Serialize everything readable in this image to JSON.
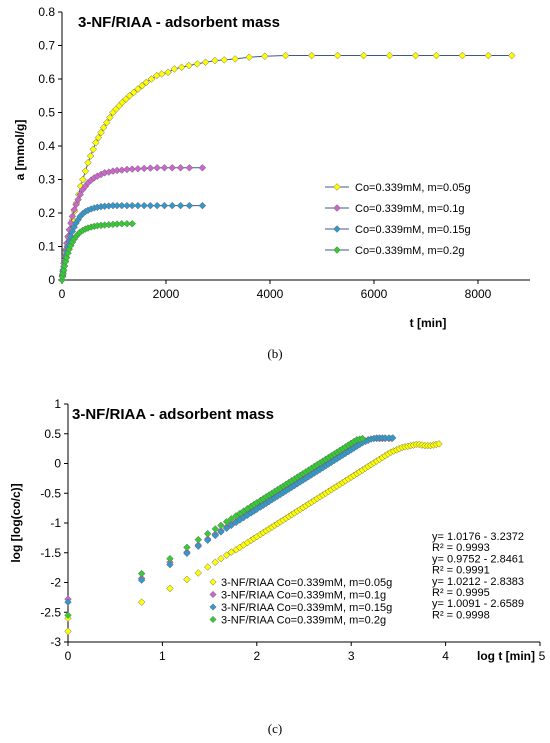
{
  "captions": {
    "b": "(b)",
    "c": "(c)"
  },
  "chart_data": [
    {
      "type": "line",
      "title": "3-NF/RIAA - adsorbent mass",
      "xlabel": "t [min]",
      "ylabel": "a [mmol/g]",
      "xlim": [
        0,
        9000
      ],
      "ylim": [
        0,
        0.8
      ],
      "xticks": [
        "0",
        "2000",
        "4000",
        "6000",
        "8000"
      ],
      "yticks": [
        "0",
        "0.1",
        "0.2",
        "0.3",
        "0.4",
        "0.5",
        "0.6",
        "0.7",
        "0.8"
      ],
      "legend_position": "right",
      "series": [
        {
          "name": "Co=0.339mM, m=0.05g",
          "color": "#ffff00",
          "x": [
            0,
            10,
            20,
            40,
            60,
            80,
            100,
            130,
            160,
            200,
            240,
            280,
            320,
            360,
            400,
            450,
            500,
            550,
            600,
            650,
            700,
            750,
            800,
            860,
            920,
            980,
            1040,
            1100,
            1160,
            1230,
            1300,
            1380,
            1460,
            1540,
            1620,
            1720,
            1820,
            1920,
            2040,
            2160,
            2300,
            2440,
            2600,
            2760,
            2940,
            3120,
            3330,
            3600,
            3900,
            4300,
            4800,
            5300,
            5800,
            6300,
            6800,
            7200,
            7700,
            8200,
            8650
          ],
          "y": [
            0.0,
            0.01,
            0.02,
            0.04,
            0.06,
            0.08,
            0.1,
            0.125,
            0.15,
            0.18,
            0.205,
            0.23,
            0.255,
            0.28,
            0.3,
            0.325,
            0.35,
            0.37,
            0.39,
            0.41,
            0.425,
            0.44,
            0.455,
            0.47,
            0.485,
            0.5,
            0.51,
            0.52,
            0.53,
            0.54,
            0.55,
            0.56,
            0.57,
            0.58,
            0.59,
            0.6,
            0.61,
            0.615,
            0.62,
            0.63,
            0.635,
            0.64,
            0.645,
            0.65,
            0.655,
            0.657,
            0.66,
            0.665,
            0.668,
            0.67,
            0.67,
            0.67,
            0.67,
            0.67,
            0.67,
            0.67,
            0.67,
            0.67,
            0.67
          ]
        },
        {
          "name": "Co=0.339mM, m=0.1g",
          "color": "#cc66cc",
          "x": [
            0,
            10,
            20,
            35,
            50,
            70,
            90,
            115,
            140,
            170,
            200,
            235,
            270,
            310,
            350,
            400,
            450,
            500,
            560,
            620,
            680,
            750,
            820,
            900,
            980,
            1060,
            1150,
            1250,
            1350,
            1460,
            1580,
            1700,
            1830,
            1970,
            2120,
            2280,
            2450,
            2700
          ],
          "y": [
            0.0,
            0.015,
            0.03,
            0.05,
            0.07,
            0.09,
            0.11,
            0.13,
            0.15,
            0.17,
            0.19,
            0.21,
            0.225,
            0.24,
            0.255,
            0.27,
            0.28,
            0.29,
            0.298,
            0.305,
            0.31,
            0.315,
            0.32,
            0.322,
            0.325,
            0.327,
            0.328,
            0.33,
            0.331,
            0.332,
            0.333,
            0.334,
            0.335,
            0.335,
            0.335,
            0.335,
            0.335,
            0.335
          ]
        },
        {
          "name": "Co=0.339mM, m=0.15g",
          "color": "#3399cc",
          "x": [
            0,
            10,
            20,
            35,
            50,
            70,
            90,
            115,
            140,
            170,
            200,
            235,
            270,
            310,
            350,
            400,
            450,
            500,
            560,
            620,
            680,
            750,
            820,
            900,
            980,
            1060,
            1150,
            1250,
            1350,
            1460,
            1580,
            1700,
            1830,
            1970,
            2120,
            2280,
            2450,
            2700
          ],
          "y": [
            0.0,
            0.012,
            0.025,
            0.04,
            0.055,
            0.07,
            0.085,
            0.1,
            0.115,
            0.13,
            0.145,
            0.158,
            0.17,
            0.18,
            0.19,
            0.198,
            0.204,
            0.208,
            0.212,
            0.215,
            0.217,
            0.219,
            0.22,
            0.221,
            0.222,
            0.222,
            0.222,
            0.222,
            0.222,
            0.222,
            0.222,
            0.222,
            0.222,
            0.222,
            0.222,
            0.222,
            0.222,
            0.222
          ]
        },
        {
          "name": "Co=0.339mM, m=0.2g",
          "color": "#33cc33",
          "x": [
            0,
            10,
            20,
            35,
            50,
            70,
            90,
            115,
            140,
            170,
            200,
            235,
            270,
            310,
            350,
            400,
            450,
            500,
            560,
            620,
            680,
            750,
            820,
            900,
            980,
            1060,
            1150,
            1250,
            1350
          ],
          "y": [
            0.0,
            0.01,
            0.02,
            0.03,
            0.042,
            0.055,
            0.067,
            0.08,
            0.092,
            0.103,
            0.113,
            0.122,
            0.13,
            0.137,
            0.143,
            0.148,
            0.152,
            0.155,
            0.158,
            0.16,
            0.162,
            0.163,
            0.164,
            0.165,
            0.166,
            0.167,
            0.168,
            0.168,
            0.168
          ]
        }
      ]
    },
    {
      "type": "scatter",
      "title": "3-NF/RIAA - adsorbent mass",
      "xlabel": "log t [min]",
      "ylabel": "log [log(co/c)]",
      "xlim": [
        0,
        5
      ],
      "ylim": [
        -3,
        1
      ],
      "xticks": [
        "0",
        "1",
        "2",
        "3",
        "4",
        "5"
      ],
      "yticks": [
        "-3",
        "-2.5",
        "-2",
        "-1.5",
        "-1",
        "-0.5",
        "0",
        "0.5",
        "1"
      ],
      "legend_position": "bottom-center",
      "equations": [
        {
          "eq": "y= 1.0176 - 3.2372",
          "r2": "R² = 0.9993"
        },
        {
          "eq": "y= 0.9752 - 2.8461",
          "r2": "R² = 0.9991"
        },
        {
          "eq": "y= 1.0212 - 2.8383",
          "r2": "R² = 0.9995"
        },
        {
          "eq": "y= 1.0091 - 2.6589",
          "r2": "R² = 0.9998"
        }
      ],
      "series": [
        {
          "name": "3-NF/RIAA Co=0.339mM, m=0.05g",
          "color": "#ffff00",
          "x": [
            0,
            0,
            0.78,
            1.08,
            1.26,
            1.38,
            1.48,
            1.56,
            1.62,
            1.68,
            1.73,
            1.78,
            1.82,
            1.86,
            1.9,
            1.94,
            1.97,
            2.0,
            2.04,
            2.07,
            2.1,
            2.13,
            2.16,
            2.19,
            2.22,
            2.25,
            2.28,
            2.31,
            2.34,
            2.37,
            2.4,
            2.43,
            2.46,
            2.49,
            2.52,
            2.55,
            2.58,
            2.61,
            2.64,
            2.67,
            2.7,
            2.73,
            2.76,
            2.79,
            2.82,
            2.85,
            2.88,
            2.91,
            2.94,
            2.97,
            3.0,
            3.03,
            3.06,
            3.09,
            3.12,
            3.15,
            3.18,
            3.21,
            3.24,
            3.27,
            3.3,
            3.33,
            3.36,
            3.39,
            3.42,
            3.45,
            3.48,
            3.51,
            3.54,
            3.57,
            3.6,
            3.63,
            3.66,
            3.69,
            3.72,
            3.75,
            3.78,
            3.81,
            3.84,
            3.87,
            3.9,
            3.93
          ],
          "y": [
            -2.82,
            -2.6,
            -2.33,
            -2.1,
            -1.95,
            -1.84,
            -1.74,
            -1.66,
            -1.6,
            -1.54,
            -1.49,
            -1.45,
            -1.41,
            -1.37,
            -1.33,
            -1.29,
            -1.26,
            -1.23,
            -1.19,
            -1.16,
            -1.13,
            -1.1,
            -1.07,
            -1.04,
            -1.01,
            -0.98,
            -0.95,
            -0.92,
            -0.89,
            -0.86,
            -0.83,
            -0.8,
            -0.77,
            -0.74,
            -0.71,
            -0.68,
            -0.65,
            -0.62,
            -0.59,
            -0.56,
            -0.53,
            -0.5,
            -0.47,
            -0.44,
            -0.41,
            -0.38,
            -0.35,
            -0.32,
            -0.29,
            -0.26,
            -0.23,
            -0.2,
            -0.17,
            -0.14,
            -0.11,
            -0.08,
            -0.05,
            -0.02,
            0.01,
            0.04,
            0.07,
            0.1,
            0.13,
            0.16,
            0.19,
            0.21,
            0.23,
            0.25,
            0.27,
            0.28,
            0.29,
            0.3,
            0.31,
            0.32,
            0.32,
            0.31,
            0.3,
            0.3,
            0.3,
            0.31,
            0.32,
            0.33
          ]
        },
        {
          "name": "3-NF/RIAA Co=0.339mM, m=0.1g",
          "color": "#cc66cc",
          "x": [
            0,
            0.78,
            1.08,
            1.26,
            1.38,
            1.48,
            1.56,
            1.62,
            1.68,
            1.73,
            1.78,
            1.82,
            1.86,
            1.9,
            1.94,
            1.97,
            2.0,
            2.04,
            2.07,
            2.1,
            2.13,
            2.16,
            2.19,
            2.22,
            2.25,
            2.28,
            2.31,
            2.34,
            2.37,
            2.4,
            2.43,
            2.46,
            2.49,
            2.52,
            2.55,
            2.58,
            2.61,
            2.64,
            2.67,
            2.7,
            2.73,
            2.76,
            2.79,
            2.82,
            2.85,
            2.88,
            2.91,
            2.94,
            2.97,
            3.0,
            3.03,
            3.06,
            3.09,
            3.12,
            3.15,
            3.18,
            3.21,
            3.24,
            3.27,
            3.3,
            3.33,
            3.36,
            3.4,
            3.43
          ],
          "y": [
            -2.28,
            -1.93,
            -1.66,
            -1.49,
            -1.37,
            -1.27,
            -1.19,
            -1.13,
            -1.07,
            -1.02,
            -0.98,
            -0.94,
            -0.9,
            -0.86,
            -0.82,
            -0.79,
            -0.76,
            -0.72,
            -0.69,
            -0.66,
            -0.63,
            -0.6,
            -0.57,
            -0.54,
            -0.51,
            -0.48,
            -0.45,
            -0.42,
            -0.39,
            -0.36,
            -0.33,
            -0.3,
            -0.27,
            -0.24,
            -0.21,
            -0.18,
            -0.15,
            -0.12,
            -0.09,
            -0.06,
            -0.03,
            0.0,
            0.03,
            0.06,
            0.09,
            0.12,
            0.15,
            0.18,
            0.21,
            0.24,
            0.27,
            0.3,
            0.33,
            0.36,
            0.38,
            0.4,
            0.41,
            0.42,
            0.42,
            0.42,
            0.42,
            0.42,
            0.42,
            0.42
          ]
        },
        {
          "name": "3-NF/RIAA Co=0.339mM, m=0.15g",
          "color": "#3399cc",
          "x": [
            0,
            0.78,
            1.08,
            1.26,
            1.38,
            1.48,
            1.56,
            1.62,
            1.68,
            1.73,
            1.78,
            1.82,
            1.86,
            1.9,
            1.94,
            1.97,
            2.0,
            2.04,
            2.07,
            2.1,
            2.13,
            2.16,
            2.19,
            2.22,
            2.25,
            2.28,
            2.31,
            2.34,
            2.37,
            2.4,
            2.43,
            2.46,
            2.49,
            2.52,
            2.55,
            2.58,
            2.61,
            2.64,
            2.67,
            2.7,
            2.73,
            2.76,
            2.79,
            2.82,
            2.85,
            2.88,
            2.91,
            2.94,
            2.97,
            3.0,
            3.03,
            3.06,
            3.09,
            3.12,
            3.15,
            3.18,
            3.21,
            3.24,
            3.27,
            3.3,
            3.33,
            3.36,
            3.4,
            3.44
          ],
          "y": [
            -2.33,
            -1.96,
            -1.7,
            -1.51,
            -1.39,
            -1.29,
            -1.21,
            -1.15,
            -1.09,
            -1.04,
            -0.99,
            -0.95,
            -0.91,
            -0.87,
            -0.83,
            -0.8,
            -0.77,
            -0.73,
            -0.7,
            -0.67,
            -0.64,
            -0.61,
            -0.58,
            -0.55,
            -0.52,
            -0.49,
            -0.46,
            -0.43,
            -0.4,
            -0.37,
            -0.34,
            -0.31,
            -0.28,
            -0.25,
            -0.22,
            -0.19,
            -0.16,
            -0.13,
            -0.1,
            -0.07,
            -0.04,
            -0.01,
            0.02,
            0.05,
            0.08,
            0.11,
            0.14,
            0.17,
            0.2,
            0.23,
            0.26,
            0.29,
            0.32,
            0.35,
            0.37,
            0.39,
            0.41,
            0.42,
            0.43,
            0.43,
            0.43,
            0.43,
            0.43,
            0.43
          ]
        },
        {
          "name": "3-NF/RIAA Co=0.339mM, m=0.2g",
          "color": "#33cc33",
          "x": [
            0,
            0.78,
            1.08,
            1.26,
            1.38,
            1.48,
            1.56,
            1.62,
            1.68,
            1.73,
            1.78,
            1.82,
            1.86,
            1.9,
            1.94,
            1.97,
            2.0,
            2.04,
            2.07,
            2.1,
            2.13,
            2.16,
            2.19,
            2.22,
            2.25,
            2.28,
            2.31,
            2.34,
            2.37,
            2.4,
            2.43,
            2.46,
            2.49,
            2.52,
            2.55,
            2.58,
            2.61,
            2.64,
            2.67,
            2.7,
            2.73,
            2.76,
            2.79,
            2.82,
            2.85,
            2.88,
            2.91,
            2.94,
            2.97,
            3.0,
            3.03,
            3.06,
            3.09,
            3.12
          ],
          "y": [
            -2.55,
            -1.85,
            -1.6,
            -1.41,
            -1.28,
            -1.18,
            -1.1,
            -1.04,
            -0.98,
            -0.93,
            -0.88,
            -0.84,
            -0.8,
            -0.76,
            -0.72,
            -0.69,
            -0.66,
            -0.62,
            -0.59,
            -0.56,
            -0.53,
            -0.5,
            -0.47,
            -0.44,
            -0.41,
            -0.38,
            -0.35,
            -0.32,
            -0.29,
            -0.26,
            -0.23,
            -0.2,
            -0.17,
            -0.14,
            -0.11,
            -0.08,
            -0.05,
            -0.02,
            0.01,
            0.04,
            0.07,
            0.1,
            0.13,
            0.16,
            0.19,
            0.22,
            0.25,
            0.28,
            0.31,
            0.34,
            0.37,
            0.4,
            0.41,
            0.42
          ]
        }
      ]
    }
  ]
}
